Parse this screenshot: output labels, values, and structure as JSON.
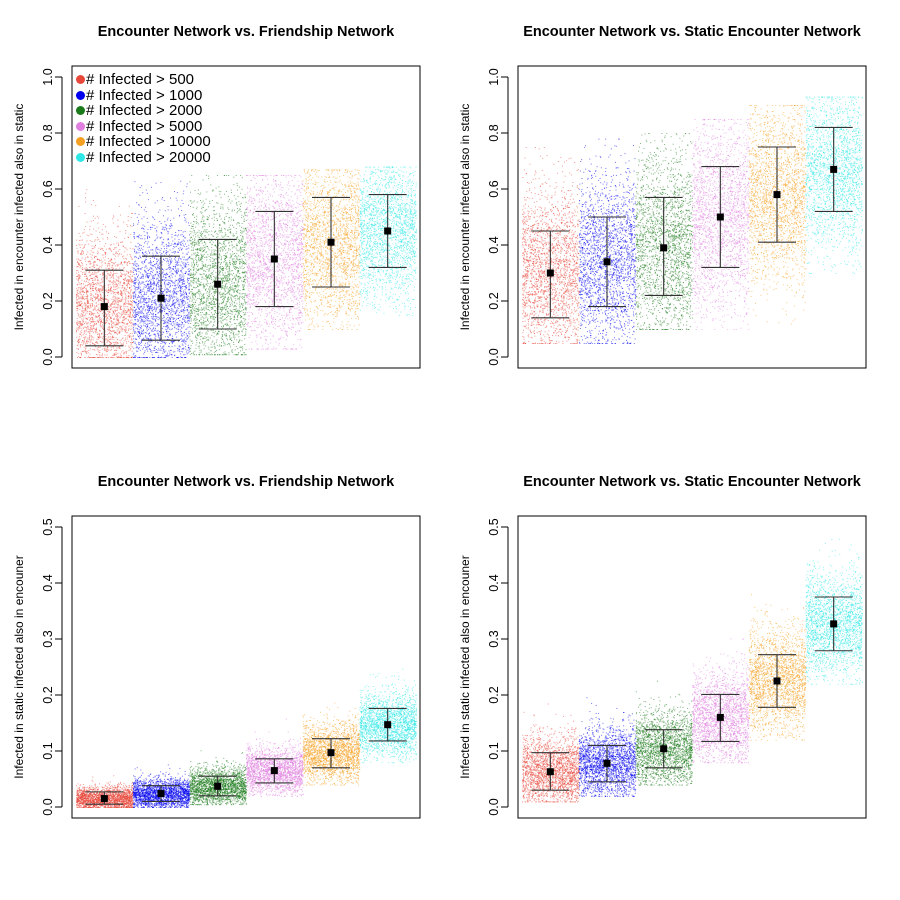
{
  "chart_data": [
    {
      "type": "scatter",
      "title": "Encounter Network vs. Friendship Network",
      "ylabel": "Infected in encounter infected also in static",
      "ylim": [
        0,
        1.0
      ],
      "yticks": [
        "0.0",
        "0.2",
        "0.4",
        "0.6",
        "0.8",
        "1.0"
      ],
      "legend": "top-left",
      "series": [
        {
          "name": "# Infected > 500",
          "color": "#e8473b",
          "mean": 0.18,
          "lower": 0.04,
          "upper": 0.31,
          "min": 0.0,
          "max": 0.6
        },
        {
          "name": "# Infected > 1000",
          "color": "#0000ee",
          "mean": 0.21,
          "lower": 0.06,
          "upper": 0.36,
          "min": 0.0,
          "max": 0.63
        },
        {
          "name": "# Infected > 2000",
          "color": "#1a7a1a",
          "mean": 0.26,
          "lower": 0.1,
          "upper": 0.42,
          "min": 0.01,
          "max": 0.65
        },
        {
          "name": "# Infected > 5000",
          "color": "#e07fe0",
          "mean": 0.35,
          "lower": 0.18,
          "upper": 0.52,
          "min": 0.03,
          "max": 0.65
        },
        {
          "name": "# Infected > 10000",
          "color": "#f5a020",
          "mean": 0.41,
          "lower": 0.25,
          "upper": 0.57,
          "min": 0.1,
          "max": 0.67
        },
        {
          "name": "# Infected > 20000",
          "color": "#2ee8e8",
          "mean": 0.45,
          "lower": 0.32,
          "upper": 0.58,
          "min": 0.15,
          "max": 0.68
        }
      ]
    },
    {
      "type": "scatter",
      "title": "Encounter Network vs. Static Encounter Network",
      "ylabel": "Infected in encounter infected also in static",
      "ylim": [
        0,
        1.0
      ],
      "yticks": [
        "0.0",
        "0.2",
        "0.4",
        "0.6",
        "0.8",
        "1.0"
      ],
      "legend": "none",
      "series": [
        {
          "name": "# Infected > 500",
          "color": "#e8473b",
          "mean": 0.3,
          "lower": 0.14,
          "upper": 0.45,
          "min": 0.05,
          "max": 0.75
        },
        {
          "name": "# Infected > 1000",
          "color": "#0000ee",
          "mean": 0.34,
          "lower": 0.18,
          "upper": 0.5,
          "min": 0.05,
          "max": 0.78
        },
        {
          "name": "# Infected > 2000",
          "color": "#1a7a1a",
          "mean": 0.39,
          "lower": 0.22,
          "upper": 0.57,
          "min": 0.1,
          "max": 0.8
        },
        {
          "name": "# Infected > 5000",
          "color": "#e07fe0",
          "mean": 0.5,
          "lower": 0.32,
          "upper": 0.68,
          "min": 0.1,
          "max": 0.85
        },
        {
          "name": "# Infected > 10000",
          "color": "#f5a020",
          "mean": 0.58,
          "lower": 0.41,
          "upper": 0.75,
          "min": 0.12,
          "max": 0.9
        },
        {
          "name": "# Infected > 20000",
          "color": "#2ee8e8",
          "mean": 0.67,
          "lower": 0.52,
          "upper": 0.82,
          "min": 0.3,
          "max": 0.93
        }
      ]
    },
    {
      "type": "scatter",
      "title": "Encounter Network vs. Friendship Network",
      "ylabel": "Infected in static infected also in encouner",
      "ylim": [
        0,
        0.5
      ],
      "yticks": [
        "0.0",
        "0.1",
        "0.2",
        "0.3",
        "0.4",
        "0.5"
      ],
      "legend": "none",
      "series": [
        {
          "name": "# Infected > 500",
          "color": "#e8473b",
          "mean": 0.015,
          "lower": 0.005,
          "upper": 0.027,
          "min": 0.0,
          "max": 0.12
        },
        {
          "name": "# Infected > 1000",
          "color": "#0000ee",
          "mean": 0.024,
          "lower": 0.01,
          "upper": 0.038,
          "min": 0.0,
          "max": 0.11
        },
        {
          "name": "# Infected > 2000",
          "color": "#1a7a1a",
          "mean": 0.037,
          "lower": 0.02,
          "upper": 0.055,
          "min": 0.005,
          "max": 0.15
        },
        {
          "name": "# Infected > 5000",
          "color": "#e07fe0",
          "mean": 0.065,
          "lower": 0.043,
          "upper": 0.086,
          "min": 0.02,
          "max": 0.18
        },
        {
          "name": "# Infected > 10000",
          "color": "#f5a020",
          "mean": 0.097,
          "lower": 0.07,
          "upper": 0.122,
          "min": 0.04,
          "max": 0.2
        },
        {
          "name": "# Infected > 20000",
          "color": "#2ee8e8",
          "mean": 0.147,
          "lower": 0.118,
          "upper": 0.176,
          "min": 0.08,
          "max": 0.25
        }
      ]
    },
    {
      "type": "scatter",
      "title": "Encounter Network vs. Static Encounter Network",
      "ylabel": "Infected in static infected also in encouner",
      "ylim": [
        0,
        0.5
      ],
      "yticks": [
        "0.0",
        "0.1",
        "0.2",
        "0.3",
        "0.4",
        "0.5"
      ],
      "legend": "none",
      "series": [
        {
          "name": "# Infected > 500",
          "color": "#e8473b",
          "mean": 0.063,
          "lower": 0.03,
          "upper": 0.097,
          "min": 0.01,
          "max": 0.3
        },
        {
          "name": "# Infected > 1000",
          "color": "#0000ee",
          "mean": 0.078,
          "lower": 0.045,
          "upper": 0.11,
          "min": 0.02,
          "max": 0.27
        },
        {
          "name": "# Infected > 2000",
          "color": "#1a7a1a",
          "mean": 0.104,
          "lower": 0.07,
          "upper": 0.138,
          "min": 0.04,
          "max": 0.26
        },
        {
          "name": "# Infected > 5000",
          "color": "#e07fe0",
          "mean": 0.16,
          "lower": 0.117,
          "upper": 0.201,
          "min": 0.08,
          "max": 0.32
        },
        {
          "name": "# Infected > 10000",
          "color": "#f5a020",
          "mean": 0.225,
          "lower": 0.178,
          "upper": 0.272,
          "min": 0.12,
          "max": 0.38
        },
        {
          "name": "# Infected > 20000",
          "color": "#2ee8e8",
          "mean": 0.327,
          "lower": 0.279,
          "upper": 0.375,
          "min": 0.22,
          "max": 0.48
        }
      ]
    }
  ]
}
